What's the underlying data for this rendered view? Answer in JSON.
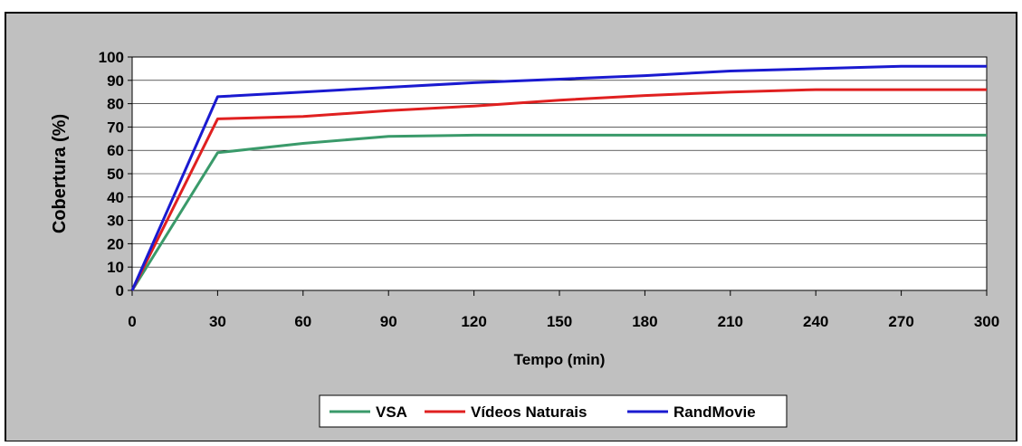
{
  "chart_data": {
    "type": "line",
    "title": "",
    "xlabel": "Tempo (min)",
    "ylabel": "Cobertura (%)",
    "xlim": [
      0,
      300
    ],
    "ylim": [
      0,
      100
    ],
    "x_ticks": [
      0,
      30,
      60,
      90,
      120,
      150,
      180,
      210,
      240,
      270,
      300
    ],
    "y_ticks": [
      0,
      10,
      20,
      30,
      40,
      50,
      60,
      70,
      80,
      90,
      100
    ],
    "grid": "horizontal",
    "legend_position": "bottom-center",
    "x": [
      0,
      30,
      60,
      90,
      120,
      150,
      180,
      210,
      240,
      270,
      300
    ],
    "series": [
      {
        "name": "VSA",
        "color": "#3a9a6a",
        "values": [
          0,
          59,
          63,
          66,
          66.5,
          66.5,
          66.5,
          66.5,
          66.5,
          66.5,
          66.5
        ]
      },
      {
        "name": "Vídeos Naturais",
        "color": "#e02020",
        "values": [
          0,
          73.5,
          74.5,
          77,
          79,
          81.5,
          83.5,
          85,
          86,
          86,
          86
        ]
      },
      {
        "name": "RandMovie",
        "color": "#1a1ad0",
        "values": [
          0,
          83,
          85,
          87,
          89,
          90.5,
          92,
          94,
          95,
          96,
          96
        ]
      }
    ],
    "colors": {
      "background": "#c0c0c0",
      "plot_area": "#ffffff",
      "gridline": "#000000"
    }
  }
}
